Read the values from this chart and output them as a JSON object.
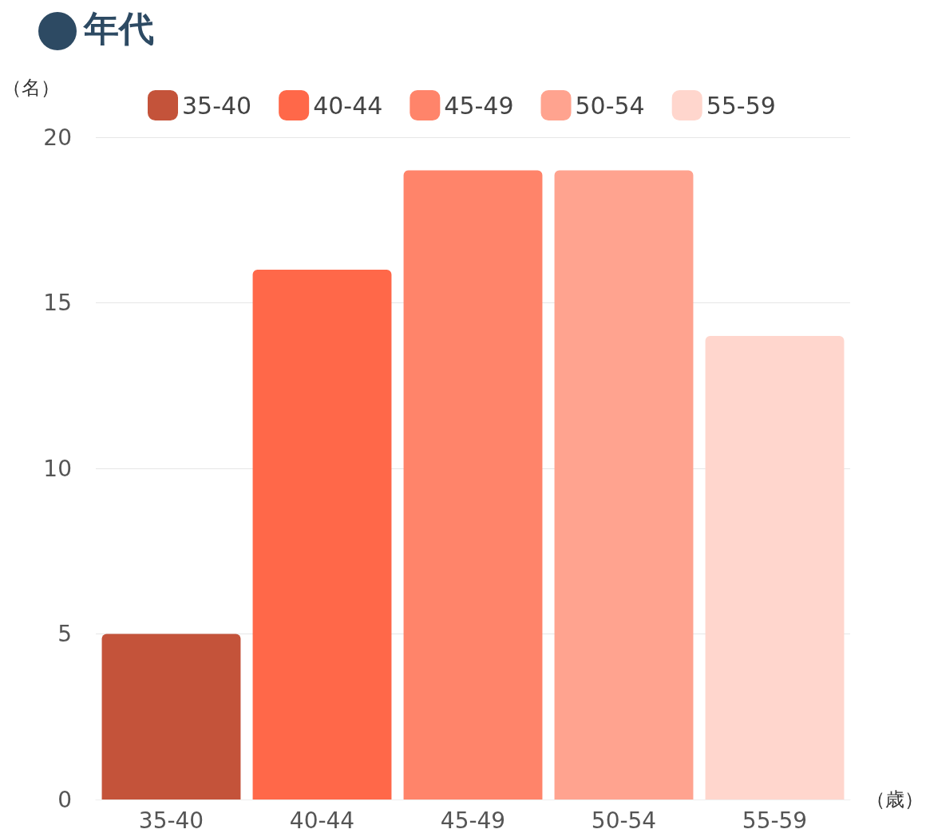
{
  "chart_data": {
    "type": "bar",
    "title": "年代",
    "ylabel": "（名）",
    "xlabel": "（歳）",
    "categories": [
      "35-40",
      "40-44",
      "45-49",
      "50-54",
      "55-59"
    ],
    "stacked": true,
    "series": [
      {
        "name": "35-40",
        "color": "#c4533a",
        "values": [
          5,
          null,
          null,
          null,
          null
        ]
      },
      {
        "name": "40-44",
        "color": "#ff6849",
        "values": [
          null,
          16,
          null,
          null,
          null
        ]
      },
      {
        "name": "45-49",
        "color": "#ff846a",
        "values": [
          null,
          null,
          19,
          null,
          null
        ]
      },
      {
        "name": "50-54",
        "color": "#ffa38f",
        "values": [
          null,
          null,
          null,
          19,
          null
        ]
      },
      {
        "name": "55-59",
        "color": "#ffd6cd",
        "values": [
          null,
          null,
          null,
          null,
          14
        ]
      }
    ],
    "ylim": [
      0,
      20
    ],
    "yticks": [
      0,
      5,
      10,
      15,
      20
    ],
    "grid": "y",
    "legend": "top"
  }
}
